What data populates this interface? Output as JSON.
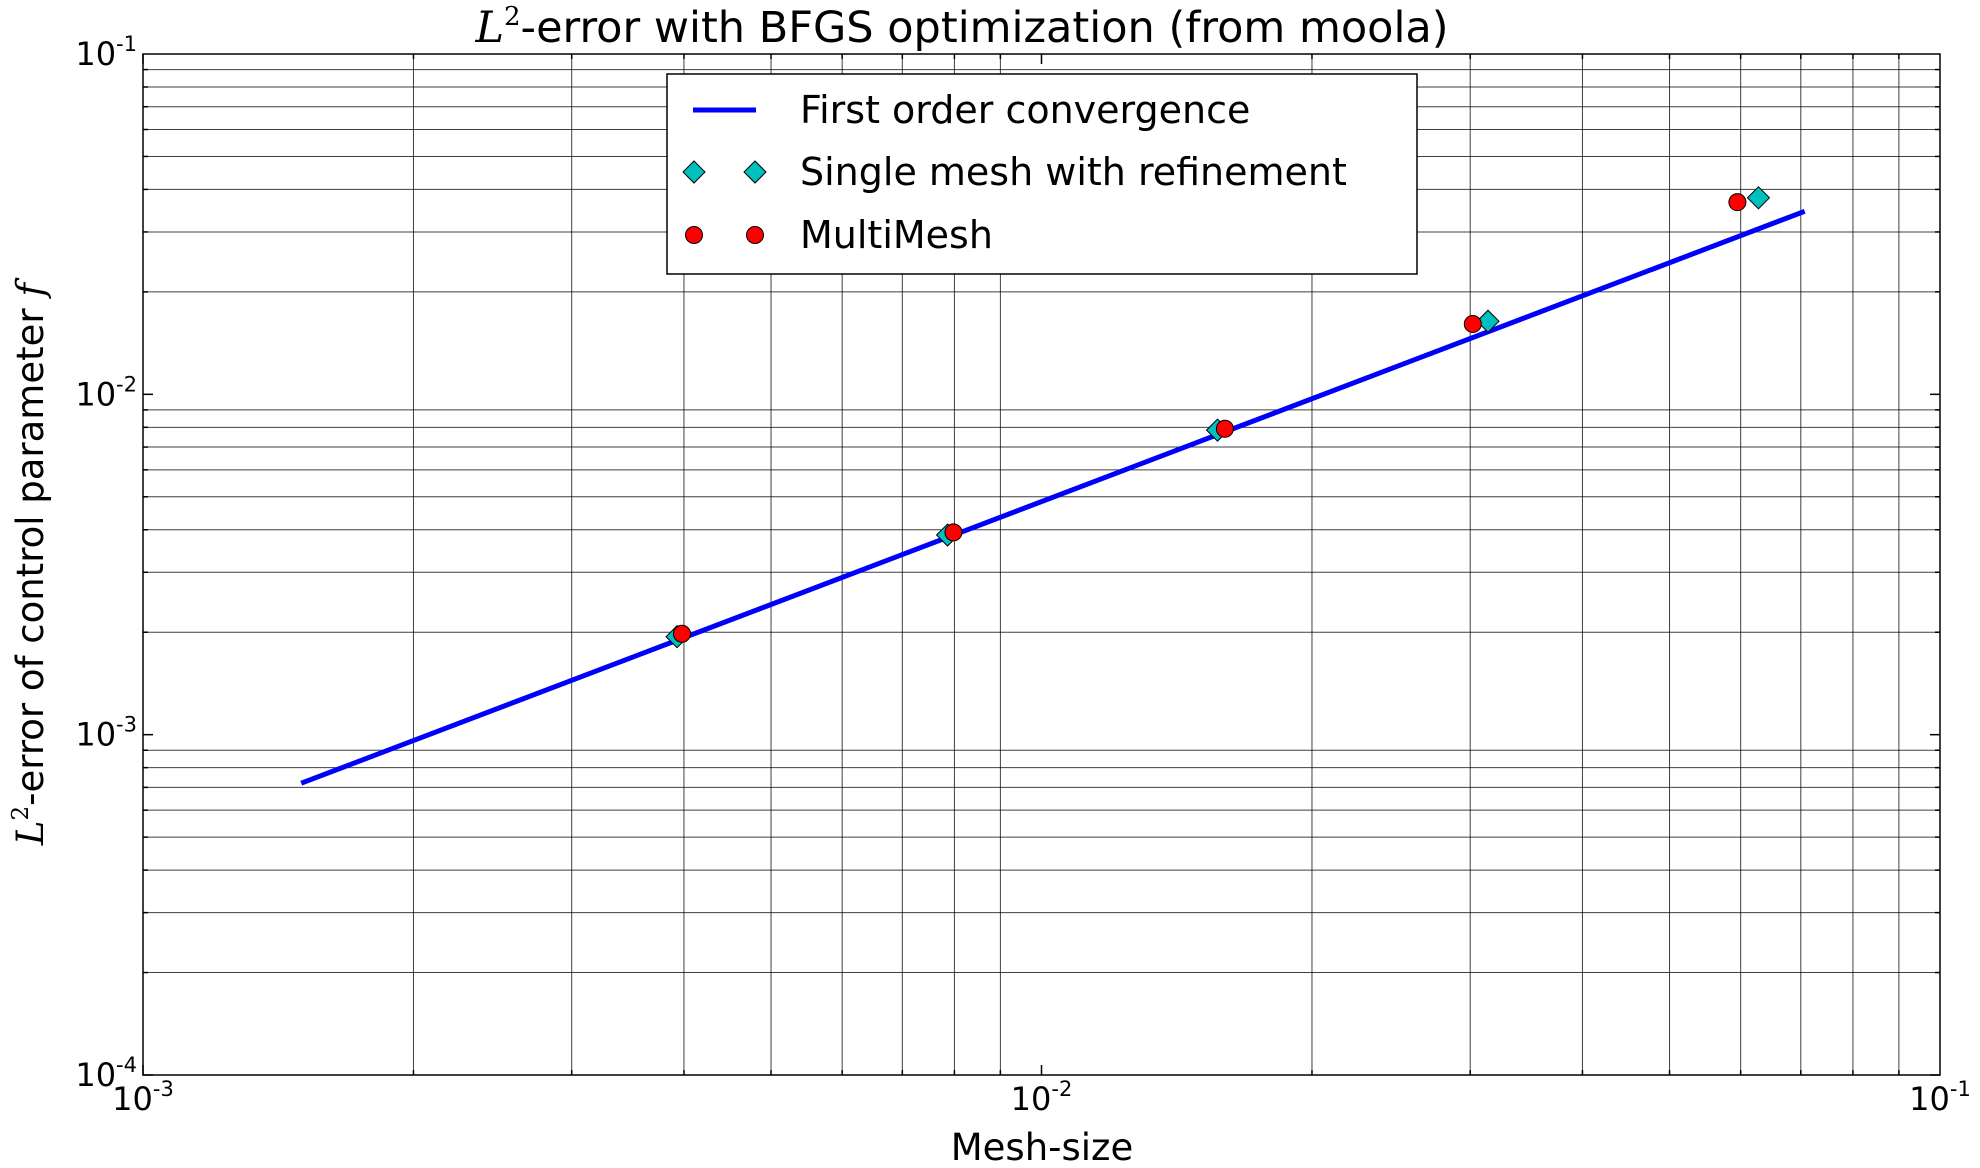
{
  "chart_data": {
    "type": "scatter",
    "title_prefix": "L",
    "title_sup": "2",
    "title_rest": "-error with BFGS optimization (from moola)",
    "xlabel": "Mesh-size",
    "ylabel_prefix": "L",
    "ylabel_sup": "2",
    "ylabel_rest": "-error of control parameter ",
    "ylabel_var": "f",
    "xscale": "log",
    "yscale": "log",
    "xlim": [
      0.001,
      0.1
    ],
    "ylim": [
      0.0001,
      0.1
    ],
    "grid": "major and minor",
    "legend_position": "top-center",
    "x_ticks": [
      {
        "value": 0.001,
        "base": "10",
        "exp": "-3"
      },
      {
        "value": 0.01,
        "base": "10",
        "exp": "-2"
      },
      {
        "value": 0.1,
        "base": "10",
        "exp": "-1"
      }
    ],
    "y_ticks": [
      {
        "value": 0.0001,
        "base": "10",
        "exp": "-4"
      },
      {
        "value": 0.001,
        "base": "10",
        "exp": "-3"
      },
      {
        "value": 0.01,
        "base": "10",
        "exp": "-2"
      },
      {
        "value": 0.1,
        "base": "10",
        "exp": "-1"
      }
    ],
    "series": [
      {
        "name": "First order convergence",
        "kind": "line",
        "color": "#0000ff",
        "x": [
          0.0015,
          0.0707
        ],
        "y": [
          0.00072,
          0.0345
        ]
      },
      {
        "name": "Single mesh with refinement",
        "kind": "diamond",
        "color": "#00bfbf",
        "x": [
          0.00393,
          0.00786,
          0.0157,
          0.0314,
          0.0628
        ],
        "y": [
          0.00194,
          0.00386,
          0.00785,
          0.0164,
          0.0378
        ]
      },
      {
        "name": "MultiMesh",
        "kind": "circle",
        "color": "#ff0000",
        "x": [
          0.00398,
          0.00798,
          0.016,
          0.0302,
          0.0595
        ],
        "y": [
          0.00198,
          0.00393,
          0.00792,
          0.0161,
          0.0367
        ]
      }
    ]
  }
}
